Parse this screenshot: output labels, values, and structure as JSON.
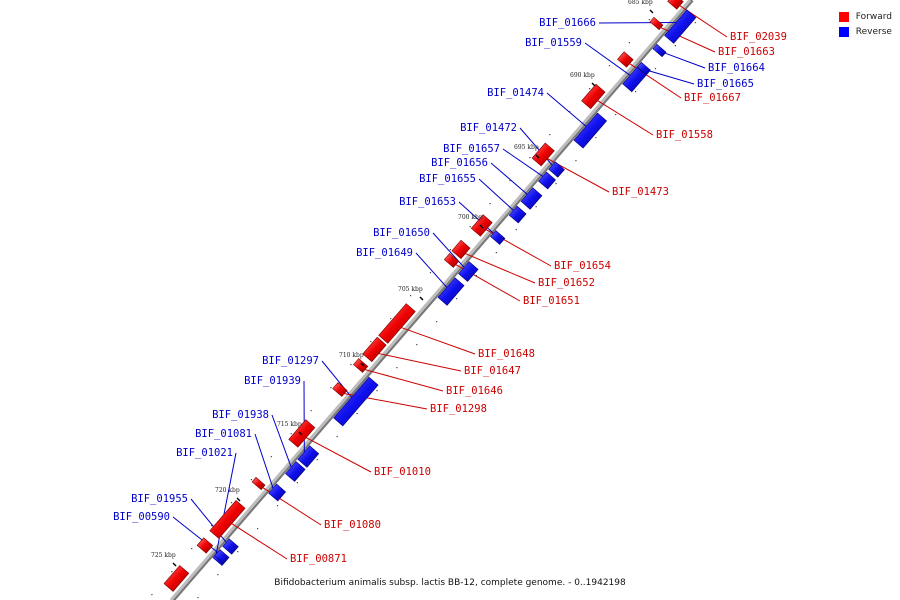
{
  "legend": {
    "forward_label": "Forward",
    "reverse_label": "Reverse",
    "forward_color": "#ff0000",
    "reverse_color": "#0000ff"
  },
  "caption": "Bifidobacterium animalis subsp. lactis BB-12, complete genome. - 0..1942198",
  "scale_labels": [
    "685 kbp",
    "690 kbp",
    "695 kbp",
    "700 kbp",
    "705 kbp",
    "710 kbp",
    "715 kbp",
    "720 kbp",
    "725 kbp"
  ],
  "genes": {
    "reverse": [
      "BIF_01666",
      "BIF_01559",
      "BIF_01474",
      "BIF_01472",
      "BIF_01657",
      "BIF_01656",
      "BIF_01655",
      "BIF_01653",
      "BIF_01650",
      "BIF_01649",
      "BIF_01297",
      "BIF_01939",
      "BIF_01938",
      "BIF_01081",
      "BIF_01021",
      "BIF_01955",
      "BIF_00590",
      "BIF_01664",
      "BIF_01665"
    ],
    "forward": [
      "BIF_02039",
      "BIF_01663",
      "BIF_01667",
      "BIF_01558",
      "BIF_01473",
      "BIF_01654",
      "BIF_01652",
      "BIF_01651",
      "BIF_01648",
      "BIF_01647",
      "BIF_01646",
      "BIF_01298",
      "BIF_01010",
      "BIF_01080",
      "BIF_00871"
    ]
  }
}
